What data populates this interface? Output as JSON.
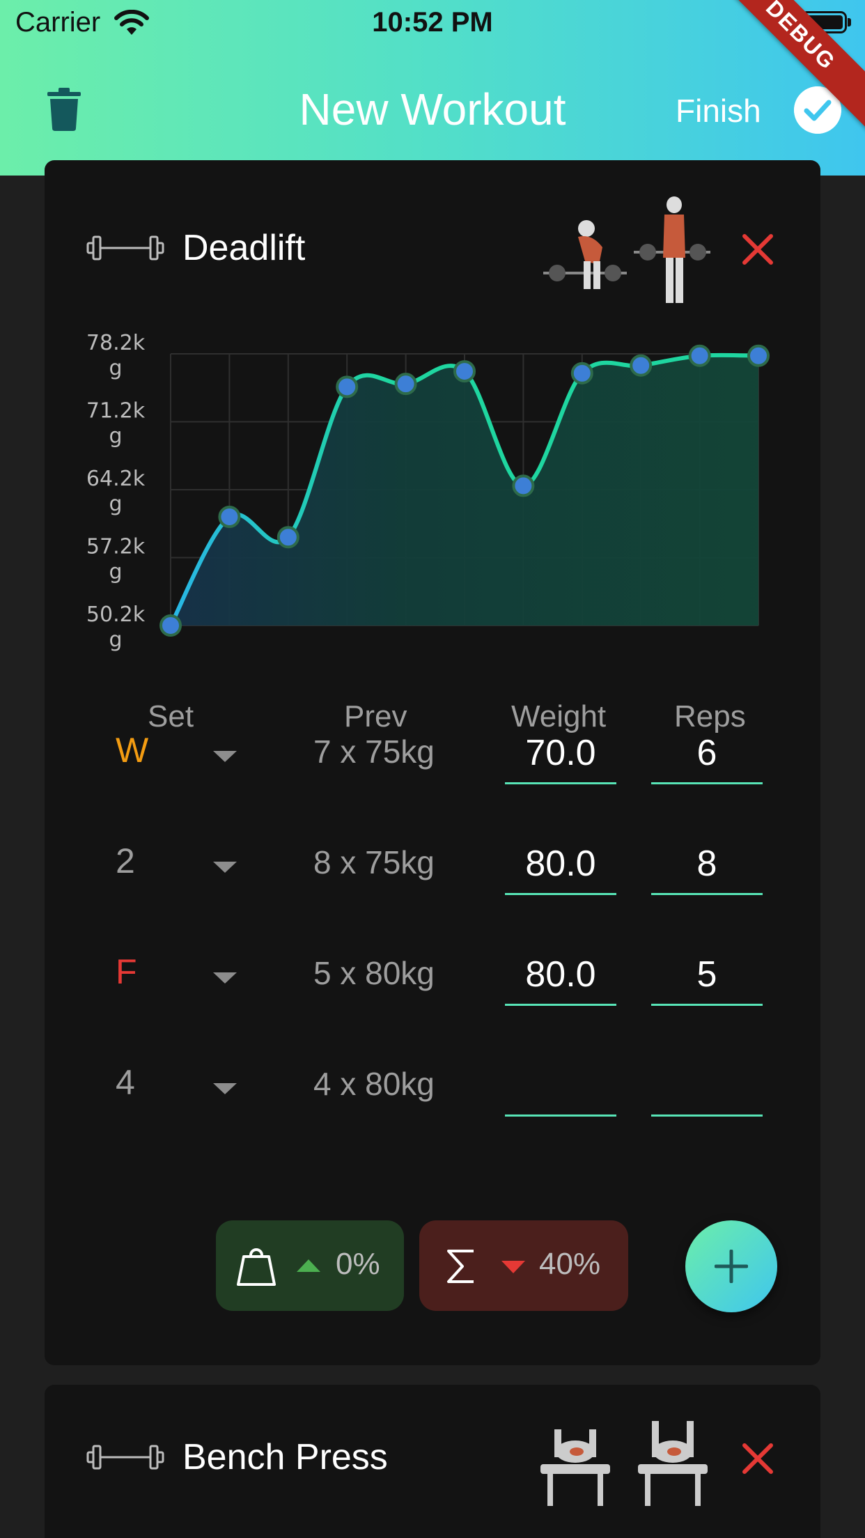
{
  "status_bar": {
    "carrier": "Carrier",
    "time": "10:52 PM"
  },
  "header": {
    "title": "New Workout",
    "finish_label": "Finish",
    "debug_label": "DEBUG"
  },
  "exercises": [
    {
      "name": "Deadlift",
      "chart_data": {
        "type": "line",
        "x": [
          1,
          2,
          3,
          4,
          5,
          6,
          7,
          8,
          9,
          10,
          11
        ],
        "values": [
          50.2,
          61.4,
          59.3,
          74.8,
          75.1,
          76.4,
          64.6,
          76.2,
          77.0,
          78.0,
          78.0
        ],
        "y_ticks": [
          "50.2kg",
          "57.2kg",
          "64.2kg",
          "71.2kg",
          "78.2kg"
        ],
        "ylim": [
          50.2,
          78.2
        ],
        "grid": true,
        "line_color": "#1fd6a0",
        "marker_color": "#3d7fd6"
      },
      "columns": {
        "set": "Set",
        "prev": "Prev",
        "weight": "Weight",
        "reps": "Reps"
      },
      "sets": [
        {
          "set": "W",
          "set_color": "#f39c12",
          "prev": "7 x 75kg",
          "weight": "70.0",
          "reps": "6"
        },
        {
          "set": "2",
          "set_color": "#9e9e9e",
          "prev": "8 x 75kg",
          "weight": "80.0",
          "reps": "8"
        },
        {
          "set": "F",
          "set_color": "#e53935",
          "prev": "5 x 80kg",
          "weight": "80.0",
          "reps": "5"
        },
        {
          "set": "4",
          "set_color": "#9e9e9e",
          "prev": "4 x 80kg",
          "weight": "",
          "reps": ""
        }
      ],
      "stats": {
        "weight_change": "0%",
        "weight_trend": "up",
        "weight_color": "#4caf50",
        "volume_change": "40%",
        "volume_trend": "down",
        "volume_color": "#e53935"
      }
    },
    {
      "name": "Bench Press"
    }
  ],
  "icons": [
    "trash-icon",
    "check-circle-icon",
    "barbell-icon",
    "close-icon",
    "weight-icon",
    "sigma-icon",
    "plus-icon",
    "wifi-icon",
    "battery-icon"
  ]
}
